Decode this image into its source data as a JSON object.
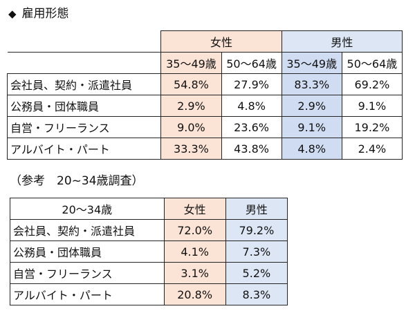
{
  "heading": {
    "mark": "◆",
    "title": "雇用形態"
  },
  "table1": {
    "group_headers": {
      "female": "女性",
      "male": "男性"
    },
    "age_headers": [
      "35～49歳",
      "50～64歳",
      "35～49歳",
      "50～64歳"
    ],
    "rows": [
      {
        "label": "会社員、契約・派遣社員",
        "values": [
          "54.8%",
          "27.9%",
          "83.3%",
          "69.2%"
        ]
      },
      {
        "label": "公務員・団体職員",
        "values": [
          "2.9%",
          "4.8%",
          "2.9%",
          "9.1%"
        ]
      },
      {
        "label": "自営・フリーランス",
        "values": [
          "9.0%",
          "23.6%",
          "9.1%",
          "19.2%"
        ]
      },
      {
        "label": "アルバイト・パート",
        "values": [
          "33.3%",
          "43.8%",
          "4.8%",
          "2.4%"
        ]
      }
    ]
  },
  "subheading": "（参考　20~34歳調査）",
  "table2": {
    "corner": "20～34歳",
    "headers": [
      "女性",
      "男性"
    ],
    "rows": [
      {
        "label": "会社員、契約・派遣社員",
        "values": [
          "72.0%",
          "79.2%"
        ]
      },
      {
        "label": "公務員・団体職員",
        "values": [
          "4.1%",
          "7.3%"
        ]
      },
      {
        "label": "自営・フリーランス",
        "values": [
          "3.1%",
          "5.2%"
        ]
      },
      {
        "label": "アルバイト・パート",
        "values": [
          "20.8%",
          "8.3%"
        ]
      }
    ]
  },
  "colors": {
    "female_fill": "#fbe4d5",
    "male_fill": "#dde6f4",
    "male_fill_dark": "#cfdcf1"
  }
}
